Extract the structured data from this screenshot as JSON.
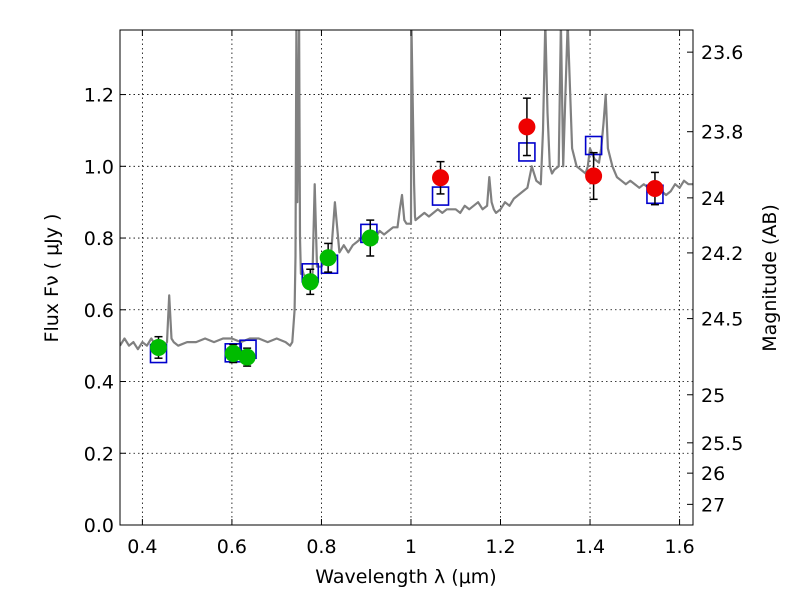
{
  "chart_data": {
    "type": "scatter",
    "xlabel": "Wavelength  λ (μm)",
    "ylabel": "Flux  Fν  ( μJy )",
    "y2label": "Magnitude (AB)",
    "xlim": [
      0.35,
      1.63
    ],
    "ylim": [
      0.0,
      1.38
    ],
    "grid": true,
    "x_ticks": [
      0.4,
      0.6,
      0.8,
      1.0,
      1.2,
      1.4,
      1.6
    ],
    "x_tick_labels": [
      "0.4",
      "0.6",
      "0.8",
      "1",
      "1.2",
      "1.4",
      "1.6"
    ],
    "y_ticks": [
      0.0,
      0.2,
      0.4,
      0.6,
      0.8,
      1.0,
      1.2
    ],
    "y_tick_labels": [
      "0.0",
      "0.2",
      "0.4",
      "0.6",
      "0.8",
      "1.0",
      "1.2"
    ],
    "mag_ticks": [
      23.6,
      23.8,
      24,
      24.2,
      24.5,
      25,
      25.5,
      26,
      27
    ],
    "mag_tick_labels": [
      "23.6",
      "23.8",
      "24",
      "24.2",
      "24.5",
      "25",
      "25.5",
      "26",
      "27"
    ],
    "colors": {
      "spectrum": "#808080",
      "green": "#00bb00",
      "red": "#ee0000",
      "model": "#0000cc",
      "errorbar": "#000000"
    },
    "series": [
      {
        "name": "model spectrum",
        "kind": "line",
        "x": [
          0.35,
          0.36,
          0.37,
          0.38,
          0.39,
          0.4,
          0.41,
          0.42,
          0.43,
          0.44,
          0.45,
          0.455,
          0.46,
          0.465,
          0.47,
          0.48,
          0.5,
          0.52,
          0.54,
          0.56,
          0.58,
          0.6,
          0.62,
          0.64,
          0.66,
          0.68,
          0.7,
          0.72,
          0.73,
          0.735,
          0.74,
          0.742,
          0.744,
          0.746,
          0.748,
          0.75,
          0.752,
          0.754,
          0.756,
          0.76,
          0.77,
          0.78,
          0.785,
          0.79,
          0.8,
          0.81,
          0.82,
          0.83,
          0.84,
          0.85,
          0.86,
          0.87,
          0.88,
          0.89,
          0.9,
          0.91,
          0.92,
          0.93,
          0.94,
          0.95,
          0.96,
          0.97,
          0.975,
          0.98,
          0.985,
          0.99,
          1.0,
          1.001,
          1.003,
          1.005,
          1.007,
          1.009,
          1.01,
          1.02,
          1.03,
          1.04,
          1.05,
          1.06,
          1.07,
          1.08,
          1.09,
          1.1,
          1.11,
          1.12,
          1.13,
          1.14,
          1.15,
          1.16,
          1.17,
          1.175,
          1.18,
          1.185,
          1.19,
          1.2,
          1.21,
          1.22,
          1.23,
          1.24,
          1.25,
          1.26,
          1.27,
          1.28,
          1.29,
          1.295,
          1.3,
          1.305,
          1.31,
          1.315,
          1.32,
          1.33,
          1.335,
          1.34,
          1.345,
          1.35,
          1.36,
          1.37,
          1.38,
          1.39,
          1.395,
          1.4,
          1.41,
          1.42,
          1.425,
          1.43,
          1.435,
          1.44,
          1.45,
          1.46,
          1.47,
          1.48,
          1.49,
          1.5,
          1.51,
          1.52,
          1.53,
          1.54,
          1.55,
          1.56,
          1.57,
          1.58,
          1.59,
          1.6,
          1.61,
          1.62,
          1.63
        ],
        "y": [
          0.5,
          0.52,
          0.5,
          0.51,
          0.49,
          0.51,
          0.5,
          0.52,
          0.5,
          0.51,
          0.5,
          0.51,
          0.64,
          0.52,
          0.51,
          0.5,
          0.51,
          0.51,
          0.52,
          0.51,
          0.52,
          0.52,
          0.51,
          0.52,
          0.52,
          0.51,
          0.52,
          0.51,
          0.5,
          0.51,
          0.6,
          0.75,
          1.4,
          0.9,
          1.1,
          1.4,
          0.8,
          0.7,
          0.72,
          0.7,
          0.68,
          0.7,
          0.95,
          0.72,
          0.72,
          0.74,
          0.73,
          0.9,
          0.76,
          0.78,
          0.76,
          0.78,
          0.79,
          0.8,
          0.8,
          0.82,
          0.8,
          0.82,
          0.81,
          0.82,
          0.83,
          0.83,
          0.88,
          0.92,
          0.85,
          0.84,
          0.84,
          1.4,
          1.25,
          1.1,
          0.95,
          0.86,
          0.85,
          0.86,
          0.87,
          0.86,
          0.87,
          0.88,
          0.87,
          0.88,
          0.88,
          0.88,
          0.87,
          0.89,
          0.88,
          0.89,
          0.9,
          0.88,
          0.89,
          0.97,
          0.9,
          0.88,
          0.87,
          0.88,
          0.9,
          0.89,
          0.91,
          0.92,
          0.93,
          0.94,
          1.0,
          0.96,
          0.95,
          1.1,
          1.4,
          1.15,
          1.0,
          0.98,
          0.99,
          1.0,
          1.4,
          1.0,
          1.2,
          1.4,
          1.05,
          1.0,
          0.99,
          0.98,
          1.0,
          1.05,
          1.02,
          1.01,
          1.05,
          1.12,
          1.2,
          1.05,
          1.0,
          0.97,
          0.96,
          0.95,
          0.96,
          0.95,
          0.94,
          0.95,
          0.94,
          0.93,
          0.94,
          0.93,
          0.92,
          0.93,
          0.95,
          0.94,
          0.96,
          0.95,
          0.95
        ]
      },
      {
        "name": "photometry (green)",
        "kind": "points",
        "x": [
          0.436,
          0.603,
          0.634,
          0.775,
          0.815,
          0.909
        ],
        "y": [
          0.495,
          0.478,
          0.468,
          0.678,
          0.745,
          0.8
        ],
        "yerr": [
          0.03,
          0.025,
          0.025,
          0.035,
          0.04,
          0.05
        ]
      },
      {
        "name": "photometry (red)",
        "kind": "points",
        "x": [
          1.066,
          1.259,
          1.408,
          1.545
        ],
        "y": [
          0.968,
          1.11,
          0.973,
          0.938
        ],
        "yerr": [
          0.045,
          0.08,
          0.065,
          0.045
        ]
      },
      {
        "name": "model photometry",
        "kind": "squares",
        "x": [
          0.436,
          0.603,
          0.636,
          0.775,
          0.818,
          0.906,
          1.066,
          1.259,
          1.408,
          1.545
        ],
        "y": [
          0.478,
          0.48,
          0.49,
          0.703,
          0.727,
          0.813,
          0.917,
          1.04,
          1.058,
          0.922
        ]
      }
    ]
  }
}
